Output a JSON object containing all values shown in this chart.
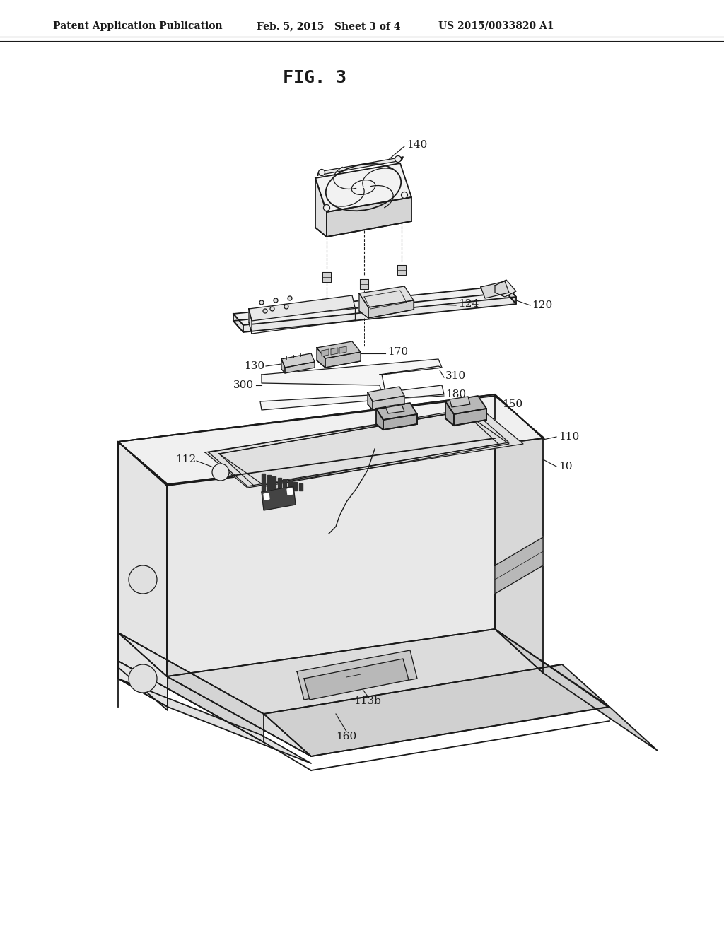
{
  "bg_color": "#ffffff",
  "line_color": "#1a1a1a",
  "fig_label": "FIG. 3",
  "header_left": "Patent Application Publication",
  "header_mid": "Feb. 5, 2015   Sheet 3 of 4",
  "header_right": "US 2015/0033820 A1"
}
